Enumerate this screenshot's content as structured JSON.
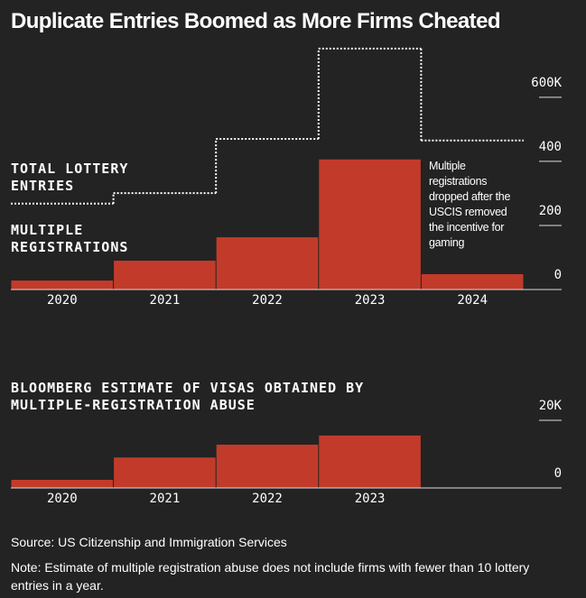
{
  "title": "Duplicate Entries Boomed as More Firms Cheated",
  "chart_data": [
    {
      "type": "bar",
      "categories": [
        "2020",
        "2021",
        "2022",
        "2023",
        "2024"
      ],
      "series": [
        {
          "name": "MULTIPLE REGISTRATIONS",
          "type": "bar",
          "color": "#c23b2a",
          "values": [
            28,
            90,
            163,
            406,
            48
          ]
        },
        {
          "name": "TOTAL LOTTERY ENTRIES",
          "type": "step",
          "color": "#ffffff",
          "values": [
            268,
            301,
            470,
            752,
            465
          ]
        }
      ],
      "annotation": "Multiple registrations dropped after the USCIS removed the incentive for gaming",
      "ylim": [
        0,
        760
      ],
      "yticks": [
        0,
        200,
        400,
        {
          "value": 600,
          "label": "600K"
        }
      ]
    },
    {
      "type": "bar",
      "title": "BLOOMBERG ESTIMATE OF VISAS OBTAINED BY MULTIPLE-REGISTRATION ABUSE",
      "categories": [
        "2020",
        "2021",
        "2022",
        "2023",
        null
      ],
      "values": [
        2400,
        9000,
        12800,
        15500,
        null
      ],
      "color": "#c23b2a",
      "ylim": [
        0,
        20000
      ],
      "yticks": [
        0,
        {
          "value": 20000,
          "label": "20K"
        }
      ]
    }
  ],
  "source": "Source: US Citizenship and Immigration Services",
  "note": "Note: Estimate of multiple registration abuse does not include firms with fewer than 10 lottery entries in a year."
}
